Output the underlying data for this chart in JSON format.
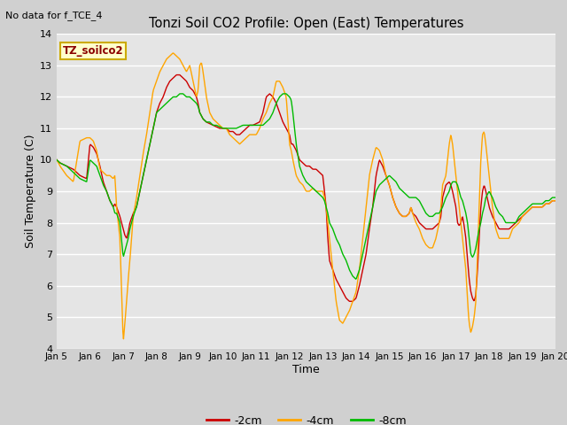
{
  "title": "Tonzi Soil CO2 Profile: Open (East) Temperatures",
  "subtitle": "No data for f_TCE_4",
  "xlabel": "Time",
  "ylabel": "Soil Temperature (C)",
  "ylim": [
    4.0,
    14.0
  ],
  "yticks": [
    4.0,
    5.0,
    6.0,
    7.0,
    8.0,
    9.0,
    10.0,
    11.0,
    12.0,
    13.0,
    14.0
  ],
  "legend_label": "TZ_soilco2",
  "series_labels": [
    "-2cm",
    "-4cm",
    "-8cm"
  ],
  "series_colors": [
    "#cc0000",
    "#ffa500",
    "#00bb00"
  ],
  "bg_color": "#d4d4d4",
  "plot_bg_color": "#e8e8e8",
  "grid_color": "#ffffff",
  "x_start": 5,
  "x_end": 20,
  "xtick_positions": [
    5,
    6,
    7,
    8,
    9,
    10,
    11,
    12,
    13,
    14,
    15,
    16,
    17,
    18,
    19,
    20
  ],
  "xtick_labels": [
    "Jan 5",
    "Jan 6",
    "Jan 7",
    "Jan 8",
    "Jan 9",
    "Jan 10",
    "Jan 11",
    "Jan 12",
    "Jan 13",
    "Jan 14",
    "Jan 15",
    "Jan 16",
    "Jan 17",
    "Jan 18",
    "Jan 19",
    "Jan 20"
  ]
}
